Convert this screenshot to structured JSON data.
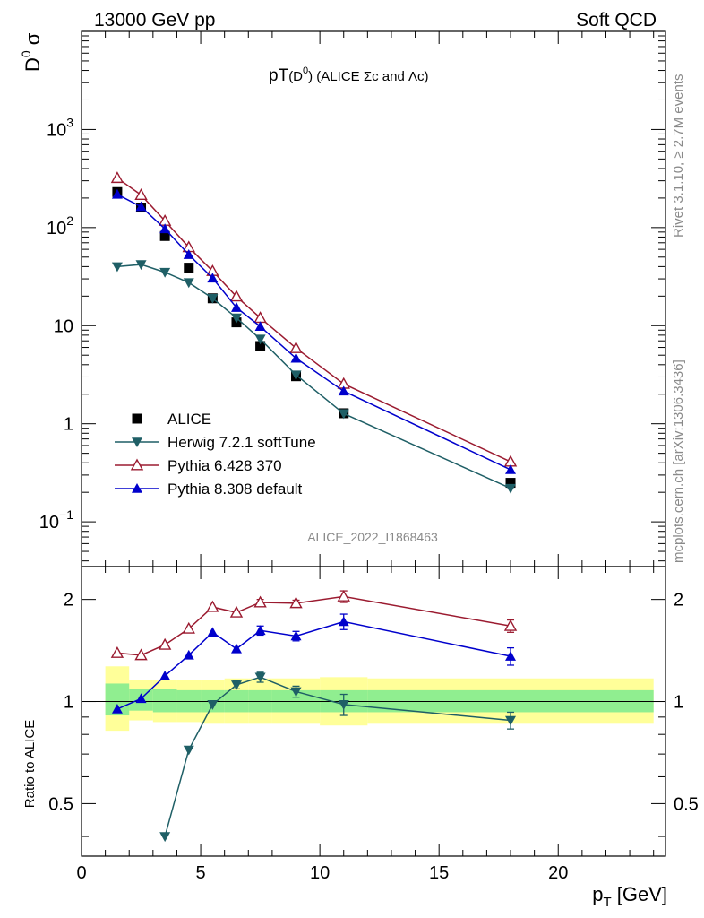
{
  "header": {
    "left": "13000 GeV pp",
    "right": "Soft QCD"
  },
  "side": {
    "top": "Rivet 3.1.10, ≥ 2.7M events",
    "bottom": "mcplots.cern.ch [arXiv:1306.3436]"
  },
  "chart_data": [
    {
      "type": "line",
      "title": "pT(D⁰) (ALICE Σc and Λc)",
      "title_main": "pT",
      "title_sub": "(D",
      "title_sup": "0",
      "title_rest": ") (ALICE Σc and Λc)",
      "ylabel_main": "D",
      "ylabel_sup": "0",
      "ylabel_rest": " σ",
      "yscale": "log",
      "ylim": [
        0.035,
        10000
      ],
      "xlim": [
        0,
        24.5
      ],
      "yticks": [
        {
          "v": 0.1,
          "base": "10",
          "exp": "−1"
        },
        {
          "v": 1,
          "base": "1",
          "exp": ""
        },
        {
          "v": 10,
          "base": "10",
          "exp": ""
        },
        {
          "v": 100,
          "base": "10",
          "exp": "2"
        },
        {
          "v": 1000,
          "base": "10",
          "exp": "3"
        }
      ],
      "watermark": "ALICE_2022_I1868463",
      "legend_position": "bottom-left",
      "series": [
        {
          "name": "ALICE",
          "color": "#000000",
          "marker": "square",
          "line": false,
          "x": [
            1.5,
            2.5,
            3.5,
            4.5,
            5.5,
            6.5,
            7.5,
            9,
            11,
            18
          ],
          "y": [
            230,
            160,
            82,
            39,
            19,
            10.8,
            6.2,
            3.05,
            1.28,
            0.25
          ]
        },
        {
          "name": "Herwig 7.2.1 softTune",
          "color": "#1f5f66",
          "marker": "triangle-down",
          "line": true,
          "x": [
            1.5,
            2.5,
            3.5,
            4.5,
            5.5,
            6.5,
            7.5,
            9,
            11,
            18
          ],
          "y": [
            40,
            42,
            35,
            27.5,
            19,
            12,
            7.3,
            3.15,
            1.27,
            0.22
          ]
        },
        {
          "name": "Pythia 6.428 370",
          "color": "#9b1b30",
          "marker": "triangle-open",
          "line": true,
          "x": [
            1.5,
            2.5,
            3.5,
            4.5,
            5.5,
            6.5,
            7.5,
            9,
            11,
            18
          ],
          "y": [
            320,
            215,
            117,
            63,
            36,
            19.8,
            12,
            5.9,
            2.55,
            0.41
          ]
        },
        {
          "name": "Pythia 8.308 default",
          "color": "#0000cc",
          "marker": "triangle-up",
          "line": true,
          "x": [
            1.5,
            2.5,
            3.5,
            4.5,
            5.5,
            6.5,
            7.5,
            9,
            11,
            18
          ],
          "y": [
            218,
            163,
            97,
            53,
            30.5,
            15.3,
            9.8,
            4.65,
            2.15,
            0.34
          ]
        }
      ]
    },
    {
      "type": "line",
      "ylabel": "Ratio to ALICE",
      "xlabel_main": "p",
      "xlabel_sub": "T",
      "xlabel_rest": " [GeV]",
      "yscale": "log",
      "ylim": [
        0.35,
        2.5
      ],
      "xlim": [
        0,
        24.5
      ],
      "xticks": [
        0,
        5,
        10,
        15,
        20
      ],
      "yticks": [
        {
          "v": 0.5,
          "label": "0.5"
        },
        {
          "v": 1,
          "label": "1"
        },
        {
          "v": 2,
          "label": "2"
        }
      ],
      "bands": {
        "edges": [
          1,
          2,
          3,
          4,
          5,
          6,
          7,
          8,
          10,
          12,
          24
        ],
        "green_lo": [
          0.91,
          0.94,
          0.93,
          0.93,
          0.93,
          0.93,
          0.93,
          0.93,
          0.93,
          0.93
        ],
        "green_hi": [
          1.13,
          1.09,
          1.09,
          1.08,
          1.08,
          1.08,
          1.08,
          1.08,
          1.08,
          1.08
        ],
        "yellow_lo": [
          0.82,
          0.88,
          0.87,
          0.87,
          0.86,
          0.86,
          0.86,
          0.86,
          0.85,
          0.86
        ],
        "yellow_hi": [
          1.27,
          1.16,
          1.16,
          1.16,
          1.16,
          1.17,
          1.17,
          1.17,
          1.18,
          1.17
        ]
      },
      "series": [
        {
          "name": "Herwig 7.2.1 softTune",
          "color": "#1f5f66",
          "marker": "triangle-down",
          "x": [
            3.5,
            4.5,
            5.5,
            6.5,
            7.5,
            9,
            11,
            18
          ],
          "y": [
            0.4,
            0.72,
            0.98,
            1.12,
            1.18,
            1.07,
            0.98,
            0.88
          ],
          "err": [
            0,
            0,
            0,
            0.03,
            0.04,
            0.04,
            0.07,
            0.05
          ]
        },
        {
          "name": "Pythia 6.428 370",
          "color": "#9b1b30",
          "marker": "triangle-open",
          "x": [
            1.5,
            2.5,
            3.5,
            4.5,
            5.5,
            6.5,
            7.5,
            9,
            11,
            18
          ],
          "y": [
            1.39,
            1.37,
            1.47,
            1.64,
            1.9,
            1.83,
            1.96,
            1.95,
            2.04,
            1.67
          ],
          "err": [
            0,
            0,
            0,
            0,
            0,
            0,
            0.04,
            0.04,
            0.08,
            0.07
          ]
        },
        {
          "name": "Pythia 8.308 default",
          "color": "#0000cc",
          "marker": "triangle-up",
          "x": [
            1.5,
            2.5,
            3.5,
            4.5,
            5.5,
            6.5,
            7.5,
            9,
            11,
            18
          ],
          "y": [
            0.95,
            1.02,
            1.19,
            1.37,
            1.6,
            1.43,
            1.62,
            1.56,
            1.72,
            1.36
          ],
          "err": [
            0,
            0,
            0,
            0,
            0,
            0,
            0.05,
            0.05,
            0.09,
            0.08
          ]
        }
      ]
    }
  ]
}
